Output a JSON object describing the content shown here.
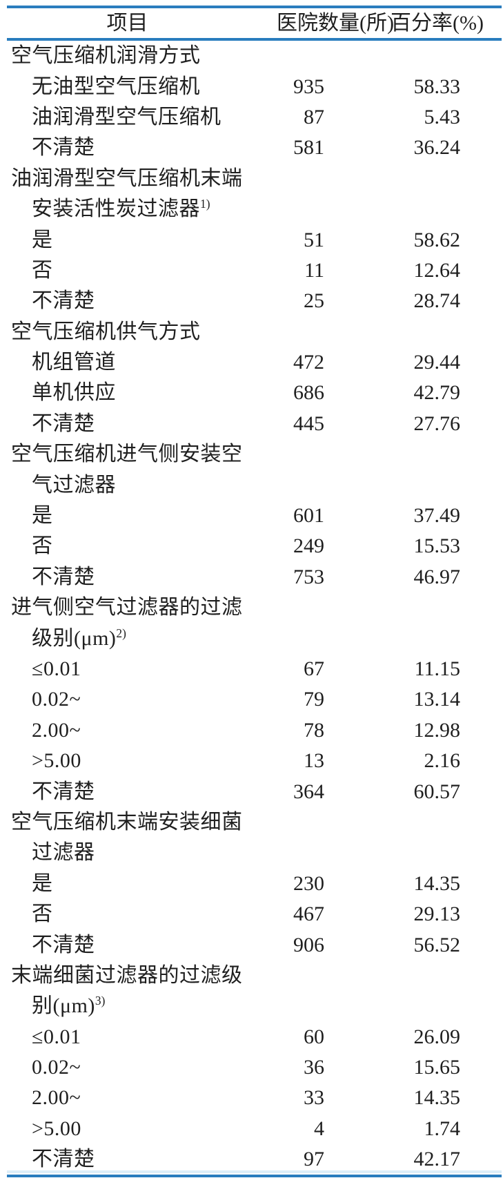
{
  "colors": {
    "rule_blue": "#2a7dbe",
    "text": "#1f1f1f"
  },
  "table": {
    "columns": {
      "item": "项目",
      "hospital_count": "医院数量(所)",
      "percentage": "百分率(%)"
    },
    "rows": [
      {
        "label": "空气压缩机润滑方式"
      },
      {
        "label": "无油型空气压缩机",
        "indent": true,
        "count": "935",
        "pct": "58.33"
      },
      {
        "label": "油润滑型空气压缩机",
        "indent": true,
        "count": "87",
        "pct": "5.43"
      },
      {
        "label": "不清楚",
        "indent": true,
        "count": "581",
        "pct": "36.24"
      },
      {
        "label": "油润滑型空气压缩机末端"
      },
      {
        "label": "安装活性炭过滤器",
        "sup": "1)",
        "indent": true
      },
      {
        "label": "是",
        "indent": true,
        "count": "51",
        "pct": "58.62"
      },
      {
        "label": "否",
        "indent": true,
        "count": "11",
        "pct": "12.64"
      },
      {
        "label": "不清楚",
        "indent": true,
        "count": "25",
        "pct": "28.74"
      },
      {
        "label": "空气压缩机供气方式"
      },
      {
        "label": "机组管道",
        "indent": true,
        "count": "472",
        "pct": "29.44"
      },
      {
        "label": "单机供应",
        "indent": true,
        "count": "686",
        "pct": "42.79"
      },
      {
        "label": "不清楚",
        "indent": true,
        "count": "445",
        "pct": "27.76"
      },
      {
        "label": "空气压缩机进气侧安装空"
      },
      {
        "label": "气过滤器",
        "indent": true
      },
      {
        "label": "是",
        "indent": true,
        "count": "601",
        "pct": "37.49"
      },
      {
        "label": "否",
        "indent": true,
        "count": "249",
        "pct": "15.53"
      },
      {
        "label": "不清楚",
        "indent": true,
        "count": "753",
        "pct": "46.97"
      },
      {
        "label": "进气侧空气过滤器的过滤"
      },
      {
        "label": "级别(μm)",
        "sup": "2)",
        "indent": true
      },
      {
        "label": "≤0.01",
        "indent": true,
        "count": "67",
        "pct": "11.15"
      },
      {
        "label": "0.02~",
        "indent": true,
        "count": "79",
        "pct": "13.14"
      },
      {
        "label": "2.00~",
        "indent": true,
        "count": "78",
        "pct": "12.98"
      },
      {
        "label": ">5.00",
        "indent": true,
        "count": "13",
        "pct": "2.16"
      },
      {
        "label": "不清楚",
        "indent": true,
        "count": "364",
        "pct": "60.57"
      },
      {
        "label": "空气压缩机末端安装细菌"
      },
      {
        "label": "过滤器",
        "indent": true
      },
      {
        "label": "是",
        "indent": true,
        "count": "230",
        "pct": "14.35"
      },
      {
        "label": "否",
        "indent": true,
        "count": "467",
        "pct": "29.13"
      },
      {
        "label": "不清楚",
        "indent": true,
        "count": "906",
        "pct": "56.52"
      },
      {
        "label": "末端细菌过滤器的过滤级"
      },
      {
        "label": "别(μm)",
        "sup": "3)",
        "indent": true
      },
      {
        "label": "≤0.01",
        "indent": true,
        "count": "60",
        "pct": "26.09"
      },
      {
        "label": "0.02~",
        "indent": true,
        "count": "36",
        "pct": "15.65"
      },
      {
        "label": "2.00~",
        "indent": true,
        "count": "33",
        "pct": "14.35"
      },
      {
        "label": ">5.00",
        "indent": true,
        "count": "4",
        "pct": "1.74"
      },
      {
        "label": "不清楚",
        "indent": true,
        "count": "97",
        "pct": "42.17"
      }
    ]
  }
}
